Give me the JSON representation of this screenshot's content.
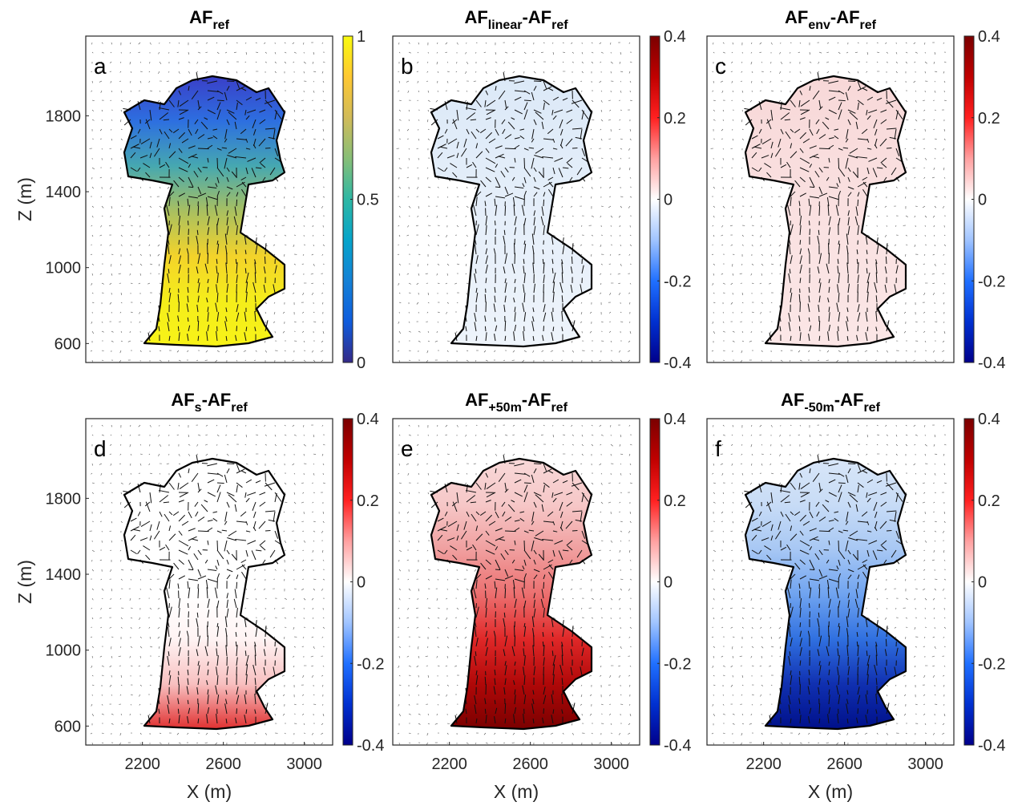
{
  "chart_data": [
    {
      "type": "field",
      "letter": "a",
      "title": [
        {
          "text": "AF",
          "sub": "ref"
        }
      ],
      "xlim": [
        1920,
        3140
      ],
      "ylim": [
        500,
        2220
      ],
      "yticks": [
        600,
        1000,
        1400,
        1800
      ],
      "ylabel": "Z (m)",
      "cloud_gradient": [
        "#3a3fc8",
        "#2d6fe0",
        "#46a8b0",
        "#a9c060",
        "#f3d32a",
        "#f5ee1a",
        "#f8f318"
      ],
      "colorbar": {
        "lim": [
          0,
          1
        ],
        "ticks": [
          0,
          0.5,
          1
        ],
        "colors": [
          "#352a87",
          "#0f5cdd",
          "#1481d6",
          "#06a4ca",
          "#2eb7a4",
          "#87bf77",
          "#d1bb59",
          "#fec832",
          "#f9fb0e"
        ]
      }
    },
    {
      "type": "field",
      "letter": "b",
      "title": [
        {
          "text": "AF",
          "sub": "linear"
        },
        {
          "text": "-AF",
          "sub": "ref"
        }
      ],
      "xlim": [
        1920,
        3140
      ],
      "ylim": [
        500,
        2220
      ],
      "cloud_gradient": [
        "#dce9f8",
        "#e2edf9",
        "#e8f0fa",
        "#eef4fb"
      ],
      "colorbar": {
        "lim": [
          -0.4,
          0.4
        ],
        "ticks": [
          -0.4,
          -0.2,
          0,
          0.2,
          0.4
        ],
        "colors": [
          "#00008b",
          "#0030d0",
          "#2070ff",
          "#a0c4ff",
          "#ffffff",
          "#ffa0a0",
          "#ff2020",
          "#c00000",
          "#7a0000"
        ]
      }
    },
    {
      "type": "field",
      "letter": "c",
      "title": [
        {
          "text": "AF",
          "sub": "env"
        },
        {
          "text": "-AF",
          "sub": "ref"
        }
      ],
      "xlim": [
        1920,
        3140
      ],
      "ylim": [
        500,
        2220
      ],
      "cloud_gradient": [
        "#f8d8d8",
        "#f9dede",
        "#fae3e3",
        "#fbe6e6"
      ],
      "colorbar": {
        "lim": [
          -0.4,
          0.4
        ],
        "ticks": [
          -0.4,
          -0.2,
          0,
          0.2,
          0.4
        ],
        "colors": [
          "#00008b",
          "#0030d0",
          "#2070ff",
          "#a0c4ff",
          "#ffffff",
          "#ffa0a0",
          "#ff2020",
          "#c00000",
          "#7a0000"
        ]
      }
    },
    {
      "type": "field",
      "letter": "d",
      "title": [
        {
          "text": "AF",
          "sub": "s"
        },
        {
          "text": "-AF",
          "sub": "ref"
        }
      ],
      "xlim": [
        1920,
        3140
      ],
      "ylim": [
        500,
        2220
      ],
      "xticks": [
        2200,
        2600,
        3000
      ],
      "xlabel": "X (m)",
      "yticks": [
        600,
        1000,
        1400,
        1800
      ],
      "ylabel": "Z (m)",
      "cloud_gradient": [
        "#ffffff",
        "#ffffff",
        "#ffffff",
        "#ffffff",
        "#fff4f4",
        "#f8c0c0",
        "#e03030"
      ],
      "colorbar": {
        "lim": [
          -0.4,
          0.4
        ],
        "ticks": [
          -0.4,
          -0.2,
          0,
          0.2,
          0.4
        ],
        "colors": [
          "#00008b",
          "#0030d0",
          "#2070ff",
          "#a0c4ff",
          "#ffffff",
          "#ffa0a0",
          "#ff2020",
          "#c00000",
          "#7a0000"
        ]
      }
    },
    {
      "type": "field",
      "letter": "e",
      "title": [
        {
          "text": "AF",
          "sub": "+50m"
        },
        {
          "text": "-AF",
          "sub": "ref"
        }
      ],
      "xlim": [
        1920,
        3140
      ],
      "ylim": [
        500,
        2220
      ],
      "xticks": [
        2200,
        2600,
        3000
      ],
      "xlabel": "X (m)",
      "cloud_gradient": [
        "#f8d8d8",
        "#f6c8c8",
        "#f0a0a0",
        "#ec7070",
        "#e02828",
        "#b00808",
        "#7a0000"
      ],
      "colorbar": {
        "lim": [
          -0.4,
          0.4
        ],
        "ticks": [
          -0.4,
          -0.2,
          0,
          0.2,
          0.4
        ],
        "colors": [
          "#00008b",
          "#0030d0",
          "#2070ff",
          "#a0c4ff",
          "#ffffff",
          "#ffa0a0",
          "#ff2020",
          "#c00000",
          "#7a0000"
        ]
      }
    },
    {
      "type": "field",
      "letter": "f",
      "title": [
        {
          "text": "AF",
          "sub": "-50m"
        },
        {
          "text": "-AF",
          "sub": "ref"
        }
      ],
      "xlim": [
        1920,
        3140
      ],
      "ylim": [
        500,
        2220
      ],
      "xticks": [
        2200,
        2600,
        3000
      ],
      "xlabel": "X (m)",
      "cloud_gradient": [
        "#d8e6f8",
        "#c8dcf6",
        "#a8c8f4",
        "#70a4f0",
        "#3070e0",
        "#1030b0",
        "#00108a"
      ],
      "colorbar": {
        "lim": [
          -0.4,
          0.4
        ],
        "ticks": [
          -0.4,
          -0.2,
          0,
          0.2,
          0.4
        ],
        "colors": [
          "#00008b",
          "#0030d0",
          "#2070ff",
          "#a0c4ff",
          "#ffffff",
          "#ffa0a0",
          "#ff2020",
          "#c00000",
          "#7a0000"
        ]
      }
    }
  ]
}
